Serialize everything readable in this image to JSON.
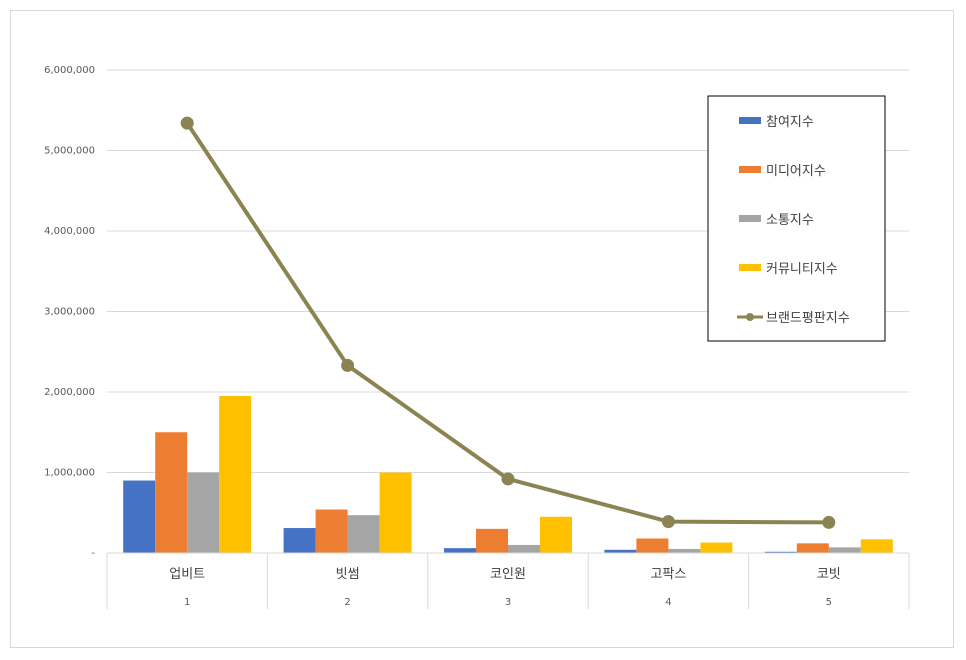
{
  "chart_data": {
    "type": "bar",
    "categories": [
      "업비트",
      "빗썸",
      "코인원",
      "고팍스",
      "코빗"
    ],
    "category_ranks": [
      "1",
      "2",
      "3",
      "4",
      "5"
    ],
    "ylim": [
      0,
      6000000
    ],
    "yticks": [
      0,
      1000000,
      2000000,
      3000000,
      4000000,
      5000000,
      6000000
    ],
    "ytick_labels": [
      "-",
      "1,000,000",
      "2,000,000",
      "3,000,000",
      "4,000,000",
      "5,000,000",
      "6,000,000"
    ],
    "grid": true,
    "legend_position": "right",
    "series": [
      {
        "name": "참여지수",
        "kind": "bar",
        "color": "#4472C4",
        "values": [
          900000,
          310000,
          60000,
          40000,
          15000
        ]
      },
      {
        "name": "미디어지수",
        "kind": "bar",
        "color": "#ED7D31",
        "values": [
          1500000,
          540000,
          300000,
          180000,
          120000
        ]
      },
      {
        "name": "소통지수",
        "kind": "bar",
        "color": "#A5A5A5",
        "values": [
          1000000,
          470000,
          100000,
          50000,
          70000
        ]
      },
      {
        "name": "커뮤니티지수",
        "kind": "bar",
        "color": "#FFC000",
        "values": [
          1950000,
          1000000,
          450000,
          130000,
          170000
        ]
      },
      {
        "name": "브랜드평판지수",
        "kind": "line",
        "color": "#8B8452",
        "values": [
          5340000,
          2330000,
          920000,
          390000,
          380000
        ]
      }
    ]
  }
}
